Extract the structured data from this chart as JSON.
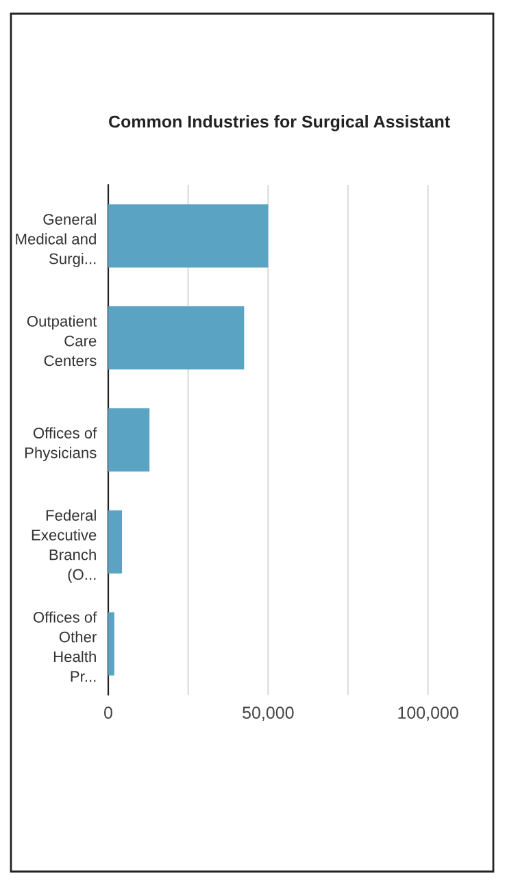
{
  "chart_data": {
    "type": "bar",
    "orientation": "horizontal",
    "title": "Common Industries for Surgical Assistant",
    "categories": [
      "General Medical and Surgi...",
      "Outpatient Care Centers",
      "Offices of Physicians",
      "Federal Executive Branch (O...",
      "Offices of Other Health Pr..."
    ],
    "values": [
      50000,
      42500,
      12900,
      4300,
      1900
    ],
    "color": "#5ba3c2",
    "xlim": [
      0,
      120000
    ],
    "xticks": [
      0,
      {
        "value": 25000,
        "label": null
      },
      {
        "value": 50000,
        "label": "50,000"
      },
      {
        "value": 75000,
        "label": null
      },
      {
        "value": 100000,
        "label": "100,000"
      }
    ],
    "grid": "x"
  }
}
